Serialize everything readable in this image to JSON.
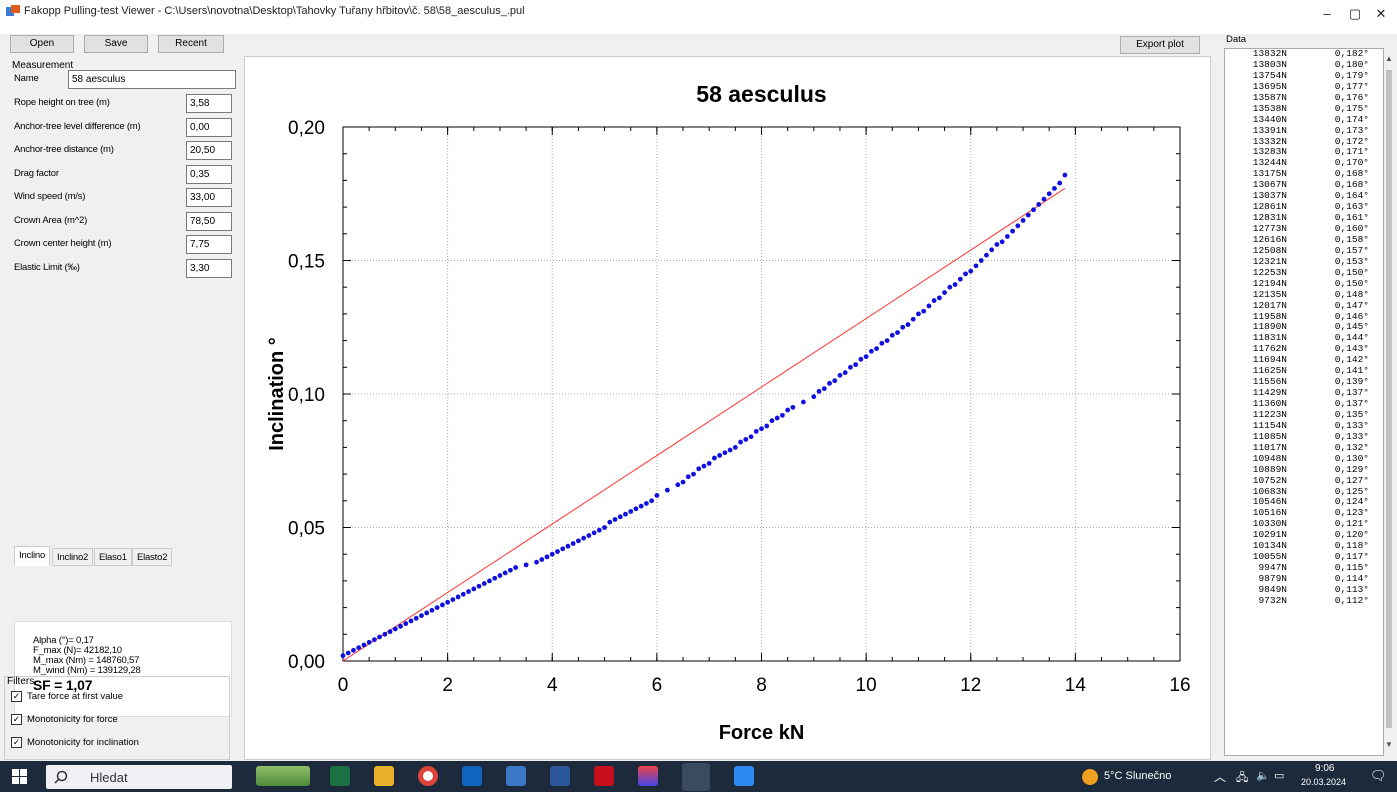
{
  "window": {
    "title": "Fakopp Pulling-test Viewer - C:\\Users\\novotna\\Desktop\\Tahovky Tuřany hřbitov\\č. 58\\58_aesculus_.pul",
    "minimize": "–",
    "maximize": "▢",
    "close": "✕"
  },
  "toolbar": {
    "open": "Open",
    "save": "Save",
    "recent": "Recent",
    "export_plot": "Export plot"
  },
  "measurement": {
    "group_label": "Measurement",
    "name_label": "Name",
    "name_value": "58 aesculus",
    "fields": [
      {
        "label": "Rope height on tree (m)",
        "value": "3,58"
      },
      {
        "label": "Anchor-tree level difference (m)",
        "value": "0,00"
      },
      {
        "label": "Anchor-tree distance (m)",
        "value": "20,50"
      },
      {
        "label": "Drag factor",
        "value": "0,35"
      },
      {
        "label": "Wind speed (m/s)",
        "value": "33,00"
      },
      {
        "label": "Crown Area (m^2)",
        "value": "78,50"
      },
      {
        "label": "Crown center height (m)",
        "value": "7,75"
      },
      {
        "label": "Elastic Limit  (‰)",
        "value": "3,30"
      }
    ]
  },
  "tabs": [
    "Inclino",
    "Inclino2",
    "Elaso1",
    "Elasto2"
  ],
  "results": {
    "alpha": "Alpha (°)= 0,17",
    "fmax": "F_max (N)= 42182,10",
    "mmax": "M_max (Nm) = 148760,57",
    "mwind": "M_wind (Nm) = 139129,28",
    "sf": "SF = 1,07"
  },
  "filters": {
    "group_label": "Filters",
    "items": [
      {
        "label": "Tare force at first value",
        "checked": true
      },
      {
        "label": "Monotonicity for force",
        "checked": true
      },
      {
        "label": "Monotonicity for inclination",
        "checked": true
      }
    ]
  },
  "chart_data": {
    "type": "scatter",
    "title": "58 aesculus",
    "xlabel": "Force  kN",
    "ylabel": "Inclination  °",
    "xlim": [
      0,
      16
    ],
    "ylim": [
      0,
      0.2
    ],
    "x_ticks": [
      "0",
      "2",
      "4",
      "6",
      "8",
      "10",
      "12",
      "14",
      "16"
    ],
    "y_ticks": [
      "0,00",
      "0,05",
      "0,10",
      "0,15",
      "0,20"
    ],
    "grid": true,
    "point_color": "#1010e0",
    "line_color": "#ff3030",
    "reference_line": {
      "x": [
        0,
        13.8
      ],
      "y": [
        0,
        0.177
      ]
    },
    "points": {
      "x": [
        0.0,
        0.1,
        0.2,
        0.3,
        0.4,
        0.5,
        0.6,
        0.7,
        0.8,
        0.9,
        1.0,
        1.1,
        1.2,
        1.3,
        1.4,
        1.5,
        1.6,
        1.7,
        1.8,
        1.9,
        2.0,
        2.1,
        2.2,
        2.3,
        2.4,
        2.5,
        2.6,
        2.7,
        2.8,
        2.9,
        3.0,
        3.1,
        3.2,
        3.3,
        3.5,
        3.7,
        3.8,
        3.9,
        4.0,
        4.1,
        4.2,
        4.3,
        4.4,
        4.5,
        4.6,
        4.7,
        4.8,
        4.9,
        5.0,
        5.1,
        5.2,
        5.3,
        5.4,
        5.5,
        5.6,
        5.7,
        5.8,
        5.9,
        6.0,
        6.2,
        6.4,
        6.5,
        6.6,
        6.7,
        6.8,
        6.9,
        7.0,
        7.1,
        7.2,
        7.3,
        7.4,
        7.5,
        7.6,
        7.7,
        7.8,
        7.9,
        8.0,
        8.1,
        8.2,
        8.3,
        8.4,
        8.5,
        8.6,
        8.8,
        9.0,
        9.1,
        9.2,
        9.3,
        9.4,
        9.5,
        9.6,
        9.7,
        9.8,
        9.9,
        10.0,
        10.1,
        10.2,
        10.3,
        10.4,
        10.5,
        10.6,
        10.7,
        10.8,
        10.9,
        11.0,
        11.1,
        11.2,
        11.3,
        11.4,
        11.5,
        11.6,
        11.7,
        11.8,
        11.9,
        12.0,
        12.1,
        12.2,
        12.3,
        12.4,
        12.5,
        12.6,
        12.7,
        12.8,
        12.9,
        13.0,
        13.1,
        13.2,
        13.3,
        13.4,
        13.5,
        13.6,
        13.7,
        13.8
      ],
      "y": [
        0.002,
        0.003,
        0.004,
        0.005,
        0.006,
        0.007,
        0.008,
        0.009,
        0.01,
        0.011,
        0.012,
        0.013,
        0.014,
        0.015,
        0.016,
        0.017,
        0.018,
        0.019,
        0.02,
        0.021,
        0.022,
        0.023,
        0.024,
        0.025,
        0.026,
        0.027,
        0.028,
        0.029,
        0.03,
        0.031,
        0.032,
        0.033,
        0.034,
        0.035,
        0.036,
        0.037,
        0.038,
        0.039,
        0.04,
        0.041,
        0.042,
        0.043,
        0.044,
        0.045,
        0.046,
        0.047,
        0.048,
        0.049,
        0.05,
        0.052,
        0.053,
        0.054,
        0.055,
        0.056,
        0.057,
        0.058,
        0.059,
        0.06,
        0.062,
        0.064,
        0.066,
        0.067,
        0.069,
        0.07,
        0.072,
        0.073,
        0.074,
        0.076,
        0.077,
        0.078,
        0.079,
        0.08,
        0.082,
        0.083,
        0.084,
        0.086,
        0.087,
        0.088,
        0.09,
        0.091,
        0.092,
        0.094,
        0.095,
        0.097,
        0.099,
        0.101,
        0.102,
        0.104,
        0.105,
        0.107,
        0.108,
        0.11,
        0.111,
        0.113,
        0.114,
        0.116,
        0.117,
        0.119,
        0.12,
        0.122,
        0.123,
        0.125,
        0.126,
        0.128,
        0.13,
        0.131,
        0.133,
        0.135,
        0.136,
        0.138,
        0.14,
        0.141,
        0.143,
        0.145,
        0.146,
        0.148,
        0.15,
        0.152,
        0.154,
        0.156,
        0.157,
        0.159,
        0.161,
        0.163,
        0.165,
        0.167,
        0.169,
        0.171,
        0.173,
        0.175,
        0.177,
        0.179,
        0.182
      ]
    }
  },
  "data_panel": {
    "label": "Data",
    "rows": [
      [
        "13832N",
        "0,182°"
      ],
      [
        "13803N",
        "0,180°"
      ],
      [
        "13754N",
        "0,179°"
      ],
      [
        "13695N",
        "0,177°"
      ],
      [
        "13587N",
        "0,176°"
      ],
      [
        "13538N",
        "0,175°"
      ],
      [
        "13440N",
        "0,174°"
      ],
      [
        "13391N",
        "0,173°"
      ],
      [
        "13332N",
        "0,172°"
      ],
      [
        "13283N",
        "0,171°"
      ],
      [
        "13244N",
        "0,170°"
      ],
      [
        "13175N",
        "0,168°"
      ],
      [
        "13067N",
        "0,168°"
      ],
      [
        "13037N",
        "0,164°"
      ],
      [
        "12861N",
        "0,163°"
      ],
      [
        "12831N",
        "0,161°"
      ],
      [
        "12773N",
        "0,160°"
      ],
      [
        "12616N",
        "0,158°"
      ],
      [
        "12508N",
        "0,157°"
      ],
      [
        "12321N",
        "0,153°"
      ],
      [
        "12253N",
        "0,150°"
      ],
      [
        "12194N",
        "0,150°"
      ],
      [
        "12135N",
        "0,148°"
      ],
      [
        "12017N",
        "0,147°"
      ],
      [
        "11958N",
        "0,146°"
      ],
      [
        "11890N",
        "0,145°"
      ],
      [
        "11831N",
        "0,144°"
      ],
      [
        "11762N",
        "0,143°"
      ],
      [
        "11694N",
        "0,142°"
      ],
      [
        "11625N",
        "0,141°"
      ],
      [
        "11556N",
        "0,139°"
      ],
      [
        "11429N",
        "0,137°"
      ],
      [
        "11360N",
        "0,137°"
      ],
      [
        "11223N",
        "0,135°"
      ],
      [
        "11154N",
        "0,133°"
      ],
      [
        "11085N",
        "0,133°"
      ],
      [
        "11017N",
        "0,132°"
      ],
      [
        "10948N",
        "0,130°"
      ],
      [
        "10889N",
        "0,129°"
      ],
      [
        "10752N",
        "0,127°"
      ],
      [
        "10683N",
        "0,125°"
      ],
      [
        "10546N",
        "0,124°"
      ],
      [
        "10516N",
        "0,123°"
      ],
      [
        "10330N",
        "0,121°"
      ],
      [
        "10291N",
        "0,120°"
      ],
      [
        "10134N",
        "0,118°"
      ],
      [
        "10055N",
        "0,117°"
      ],
      [
        "9947N",
        "0,115°"
      ],
      [
        "9879N",
        "0,114°"
      ],
      [
        "9849N",
        "0,113°"
      ],
      [
        "9732N",
        "0,112°"
      ]
    ]
  },
  "taskbar": {
    "search": "Hledat",
    "weather": "5°C Slunečno",
    "time": "9:06",
    "date": "20.03.2024"
  }
}
